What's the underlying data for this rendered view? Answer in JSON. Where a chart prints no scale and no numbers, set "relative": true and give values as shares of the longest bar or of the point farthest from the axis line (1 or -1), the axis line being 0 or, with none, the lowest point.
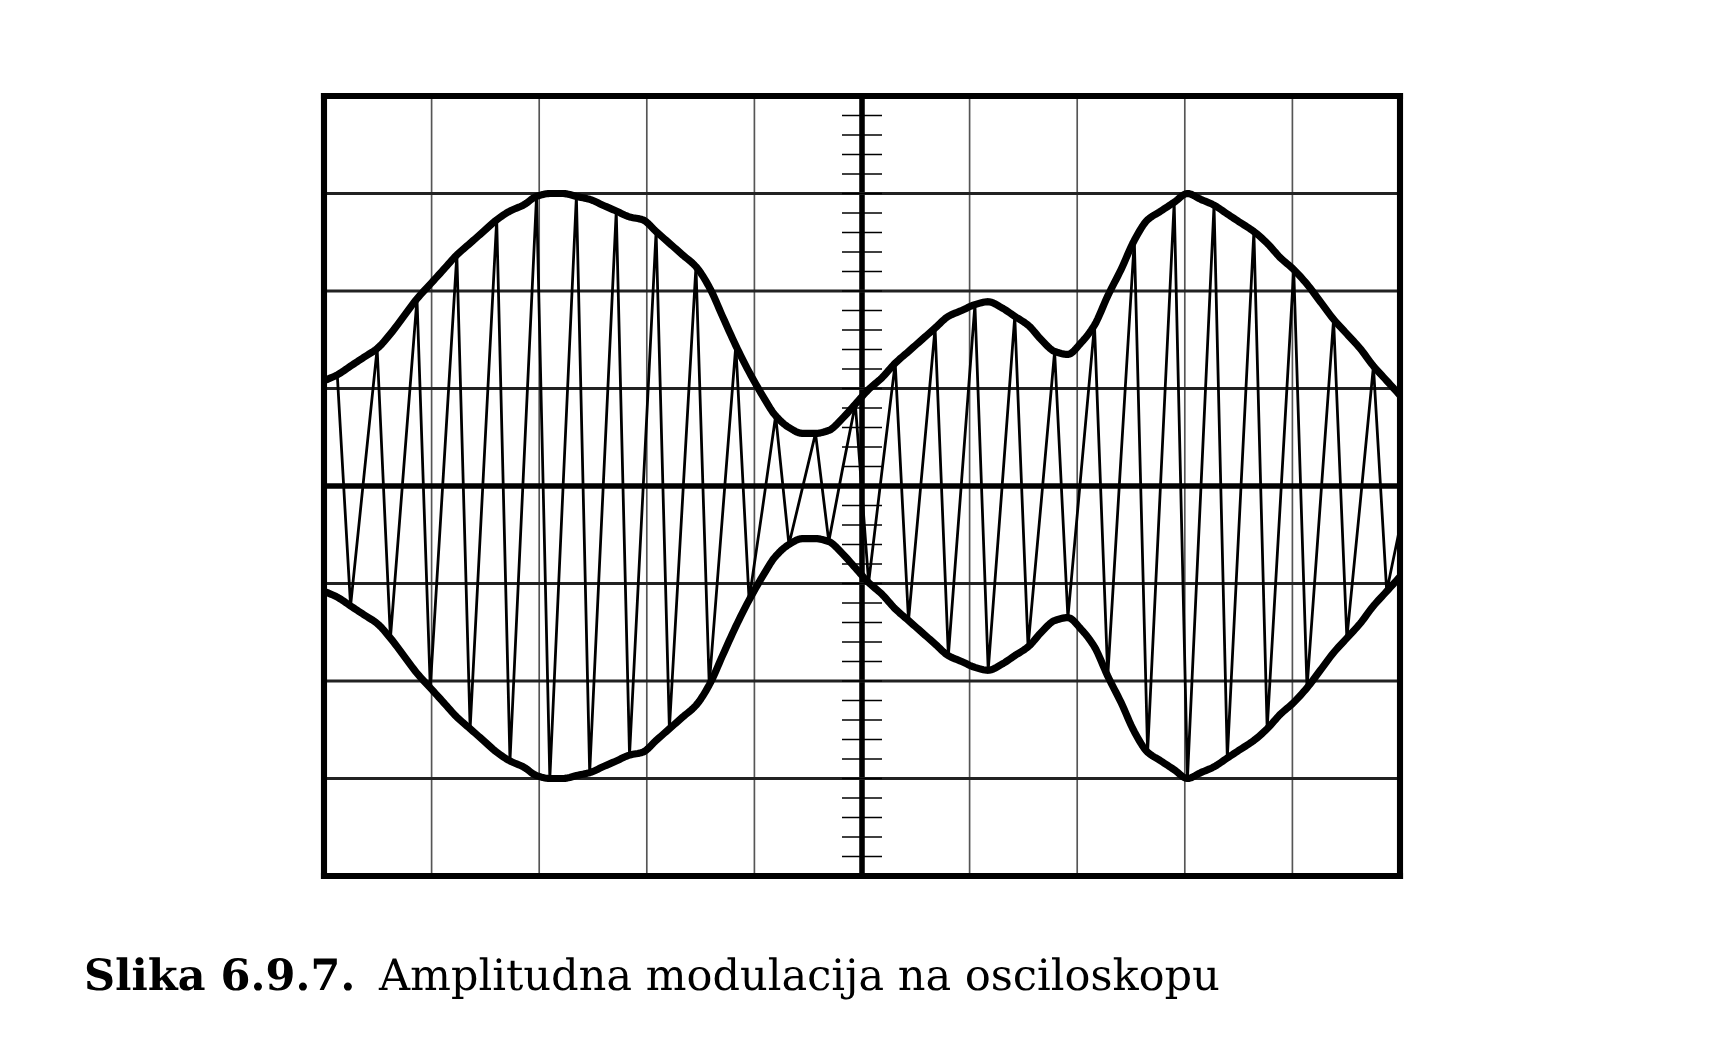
{
  "chart_data": {
    "type": "line",
    "relative": true,
    "categories": [
      null,
      null,
      null,
      null,
      null,
      null,
      null,
      null,
      null,
      null,
      null,
      null,
      null,
      null,
      null,
      null,
      null,
      null,
      null,
      null,
      null,
      null,
      null,
      null,
      null,
      null,
      null,
      null,
      null,
      null,
      null,
      null,
      null,
      null,
      null,
      null,
      null,
      null,
      null,
      null,
      null,
      null,
      null,
      null,
      null,
      null,
      null,
      null,
      null,
      null,
      null,
      null,
      null,
      null,
      null,
      null,
      null,
      null,
      null,
      null,
      null,
      null,
      null,
      null,
      null,
      null,
      null,
      null,
      null,
      null,
      null,
      null,
      null,
      null,
      null,
      null,
      null,
      null,
      null,
      null,
      null,
      null
    ],
    "series": [
      {
        "color": "#000000",
        "values": [
          0.36,
          0.38,
          0.41,
          0.44,
          0.47,
          0.52,
          0.58,
          0.64,
          0.69,
          0.74,
          0.79,
          0.83,
          0.87,
          0.91,
          0.94,
          0.96,
          0.99,
          1.0,
          1.0,
          0.99,
          0.98,
          0.96,
          0.94,
          0.92,
          0.91,
          0.87,
          0.83,
          0.79,
          0.75,
          0.68,
          0.58,
          0.48,
          0.39,
          0.31,
          0.24,
          0.2,
          0.18,
          0.18,
          0.19,
          0.23,
          0.28,
          0.33,
          0.37,
          0.42,
          0.46,
          0.5,
          0.54,
          0.58,
          0.6,
          0.62,
          0.63,
          0.61,
          0.58,
          0.55,
          0.5,
          0.46,
          0.45,
          0.49,
          0.55,
          0.65,
          0.74,
          0.84,
          0.91,
          0.94,
          0.97,
          1.0,
          0.98,
          0.96,
          0.93,
          0.9,
          0.87,
          0.83,
          0.78,
          0.74,
          0.69,
          0.63,
          0.57,
          0.52,
          0.47,
          0.41,
          0.36,
          0.31
        ]
      },
      {
        "color": "#000000",
        "values": [
          -0.36,
          -0.38,
          -0.41,
          -0.44,
          -0.47,
          -0.52,
          -0.58,
          -0.64,
          -0.69,
          -0.74,
          -0.79,
          -0.83,
          -0.87,
          -0.91,
          -0.94,
          -0.96,
          -0.99,
          -1.0,
          -1.0,
          -0.99,
          -0.98,
          -0.96,
          -0.94,
          -0.92,
          -0.91,
          -0.87,
          -0.83,
          -0.79,
          -0.75,
          -0.68,
          -0.58,
          -0.48,
          -0.39,
          -0.31,
          -0.24,
          -0.2,
          -0.18,
          -0.18,
          -0.19,
          -0.23,
          -0.28,
          -0.33,
          -0.37,
          -0.42,
          -0.46,
          -0.5,
          -0.54,
          -0.58,
          -0.6,
          -0.62,
          -0.63,
          -0.61,
          -0.58,
          -0.55,
          -0.5,
          -0.46,
          -0.45,
          -0.49,
          -0.55,
          -0.65,
          -0.74,
          -0.84,
          -0.91,
          -0.94,
          -0.97,
          -1.0,
          -0.98,
          -0.96,
          -0.93,
          -0.9,
          -0.87,
          -0.83,
          -0.78,
          -0.74,
          -0.69,
          -0.63,
          -0.57,
          -0.52,
          -0.47,
          -0.41,
          -0.36,
          -0.31
        ]
      },
      {
        "color": "#000000",
        "values": [
          0.35,
          0.38,
          -0.41,
          0.03,
          0.47,
          -0.52,
          0.06,
          0.64,
          -0.69,
          0.05,
          0.79,
          -0.83,
          0.04,
          0.91,
          -0.94,
          0.03,
          0.99,
          -1.0,
          0.0,
          0.99,
          -0.98,
          -0.02,
          0.94,
          -0.92,
          -0.03,
          0.87,
          -0.83,
          -0.04,
          0.75,
          -0.68,
          -0.1,
          0.48,
          -0.39,
          -0.08,
          0.24,
          -0.2,
          -0.01,
          0.18,
          -0.19,
          0.05,
          0.28,
          -0.33,
          0.05,
          0.42,
          -0.46,
          0.04,
          0.54,
          -0.58,
          0.02,
          0.62,
          -0.63,
          -0.03,
          0.58,
          -0.55,
          -0.05,
          0.46,
          -0.45,
          0.05,
          0.55,
          -0.65,
          0.1,
          0.84,
          -0.91,
          0.03,
          0.97,
          -1.0,
          -0.02,
          0.96,
          -0.93,
          -0.03,
          0.87,
          -0.83,
          -0.05,
          0.74,
          -0.69,
          -0.06,
          0.57,
          -0.52,
          -0.06,
          0.41,
          -0.36,
          -0.14
        ]
      }
    ],
    "grid": true,
    "tick_labels": false,
    "annotations": [
      "Slika 6.9.7.",
      "Amplitudna modulacija na osciloskopu"
    ]
  }
}
